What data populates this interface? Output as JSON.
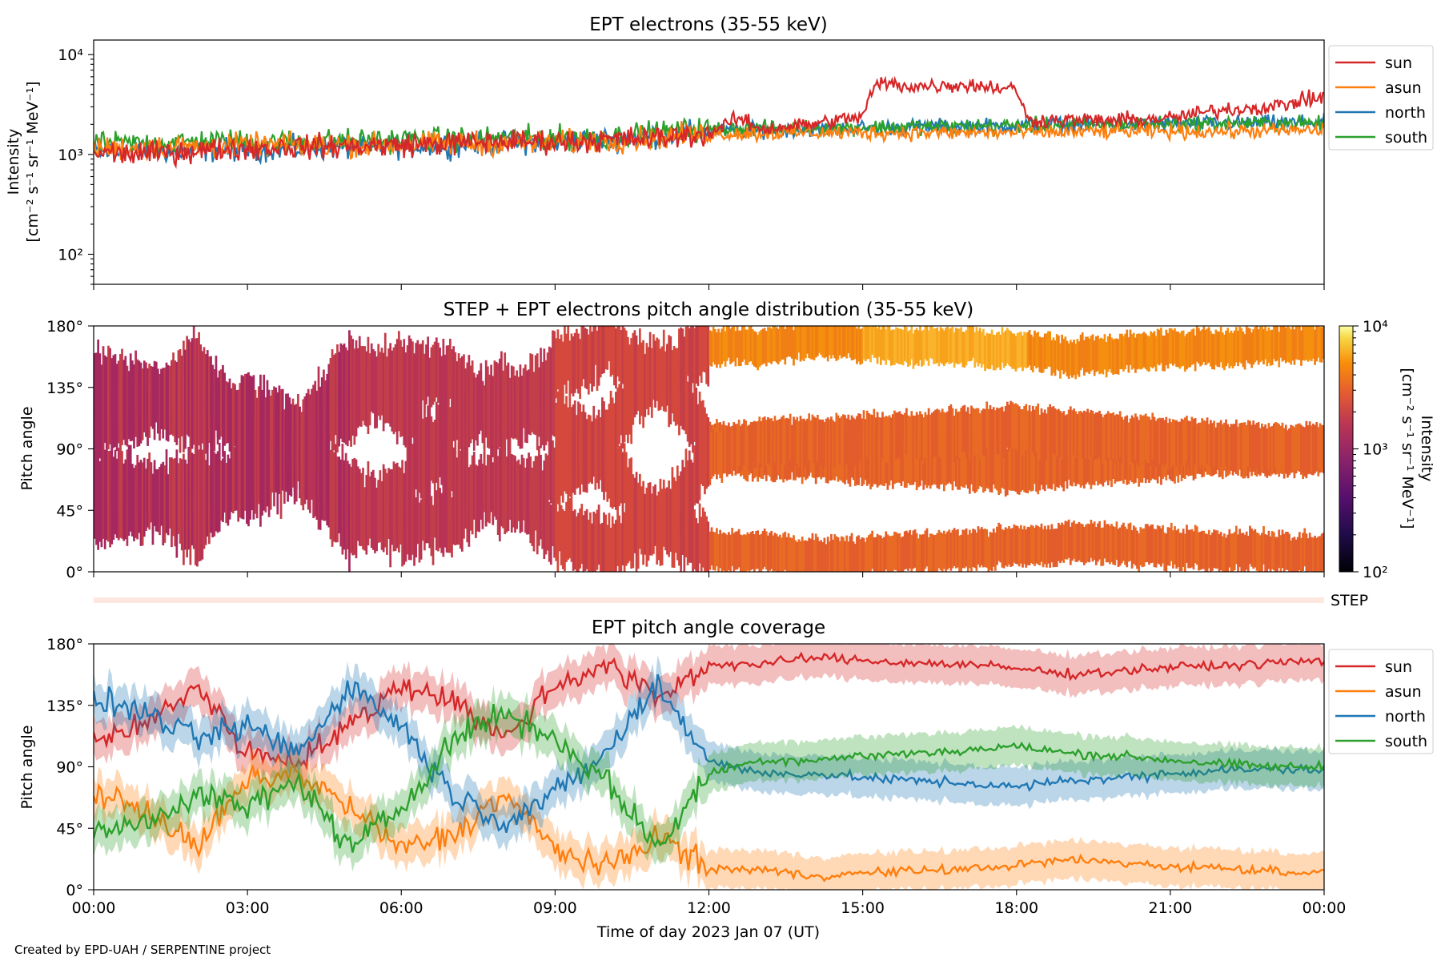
{
  "footer_credit": "Created by EPD-UAH / SERPENTINE project",
  "colors": {
    "sun": "#d62728",
    "asun": "#ff7f0e",
    "north": "#1f77b4",
    "south": "#2ca02c"
  },
  "chart_data": [
    {
      "type": "line",
      "title": "EPT electrons (35-55 keV)",
      "ylabel": "Intensity",
      "ylabel_units": "[cm⁻² s⁻¹ sr⁻¹ MeV⁻¹]",
      "yscale": "log",
      "ylim": [
        50,
        14000
      ],
      "yticks": [
        {
          "value": 100,
          "label": "10²"
        },
        {
          "value": 1000,
          "label": "10³"
        },
        {
          "value": 10000,
          "label": "10⁴"
        }
      ],
      "xlim_hours": [
        0,
        24
      ],
      "legend": {
        "placement": "outside-right",
        "entries": [
          "sun",
          "asun",
          "north",
          "south"
        ]
      },
      "series": [
        {
          "name": "sun",
          "color": "#d62728",
          "x": [
            0,
            1,
            2,
            3,
            4,
            5,
            6,
            7,
            8,
            9,
            10,
            11,
            12,
            12.6,
            13,
            14,
            15,
            15.3,
            16,
            17,
            18,
            18.2,
            19,
            20,
            21,
            22,
            23,
            24
          ],
          "y": [
            1050,
            1000,
            1100,
            1150,
            1200,
            1200,
            1250,
            1300,
            1350,
            1350,
            1400,
            1450,
            1600,
            2300,
            1800,
            2000,
            2400,
            5200,
            4800,
            5000,
            4500,
            2200,
            2200,
            2200,
            2300,
            2800,
            3000,
            3800
          ]
        },
        {
          "name": "asun",
          "color": "#ff7f0e",
          "x": [
            0,
            2,
            4,
            6,
            8,
            10,
            12,
            14,
            16,
            18,
            20,
            22,
            24
          ],
          "y": [
            1150,
            1200,
            1250,
            1250,
            1300,
            1350,
            1600,
            1650,
            1650,
            1650,
            1700,
            1700,
            1750
          ]
        },
        {
          "name": "north",
          "color": "#1f77b4",
          "x": [
            0,
            2,
            4,
            6,
            8,
            10,
            12,
            14,
            16,
            18,
            20,
            22,
            24
          ],
          "y": [
            1050,
            1100,
            1150,
            1200,
            1300,
            1400,
            1700,
            1800,
            1900,
            1950,
            2000,
            2050,
            2100
          ]
        },
        {
          "name": "south",
          "color": "#2ca02c",
          "x": [
            0,
            2,
            4,
            6,
            8,
            10,
            12,
            14,
            16,
            18,
            20,
            22,
            24
          ],
          "y": [
            1250,
            1350,
            1350,
            1400,
            1450,
            1500,
            1800,
            1850,
            1900,
            1950,
            2000,
            2050,
            2050
          ]
        }
      ]
    },
    {
      "type": "heatmap",
      "title": "STEP + EPT electrons pitch angle distribution (35-55 keV)",
      "ylabel": "Pitch angle",
      "ylim_deg": [
        0,
        180
      ],
      "yticks": [
        "0°",
        "45°",
        "90°",
        "135°",
        "180°"
      ],
      "xlim_hours": [
        0,
        24
      ],
      "colorbar": {
        "label": "Intensity",
        "units": "[cm⁻² s⁻¹ sr⁻¹ MeV⁻¹]",
        "scale": "log",
        "range": [
          100,
          10000
        ],
        "ticks": [
          {
            "value": 100,
            "label": "10²"
          },
          {
            "value": 1000,
            "label": "10³"
          },
          {
            "value": 10000,
            "label": "10⁴"
          }
        ],
        "colormap": "inferno"
      },
      "bands_deg": [
        {
          "name": "sun",
          "center_after_12h": 168,
          "halfwidth": 12
        },
        {
          "name": "north",
          "center_after_12h": 88,
          "halfwidth": 18
        },
        {
          "name": "south",
          "center_after_12h": 92,
          "halfwidth": 18
        },
        {
          "name": "asun",
          "center_after_12h": 14,
          "halfwidth": 14
        }
      ],
      "step_strip_label": "STEP"
    },
    {
      "type": "line",
      "title": "EPT pitch angle coverage",
      "ylabel": "Pitch angle",
      "ylim_deg": [
        0,
        180
      ],
      "yticks": [
        "0°",
        "45°",
        "90°",
        "135°",
        "180°"
      ],
      "xlabel": "Time of day 2023 Jan 07 (UT)",
      "xlim_hours": [
        0,
        24
      ],
      "xticks": [
        "00:00",
        "03:00",
        "06:00",
        "09:00",
        "12:00",
        "15:00",
        "18:00",
        "21:00",
        "00:00"
      ],
      "legend": {
        "placement": "outside-right",
        "entries": [
          "sun",
          "asun",
          "north",
          "south"
        ]
      },
      "band_halfwidth_deg": 14,
      "series": [
        {
          "name": "sun",
          "color": "#d62728",
          "x": [
            0,
            1,
            2,
            3,
            4,
            5,
            6,
            7,
            8,
            9,
            10,
            11,
            12,
            13,
            14,
            15,
            16,
            17,
            18,
            19,
            20,
            21,
            22,
            23,
            24
          ],
          "y": [
            110,
            120,
            150,
            100,
            95,
            120,
            150,
            140,
            110,
            150,
            165,
            140,
            165,
            165,
            170,
            168,
            166,
            165,
            162,
            158,
            160,
            163,
            164,
            166,
            168
          ]
        },
        {
          "name": "asun",
          "color": "#ff7f0e",
          "x": [
            0,
            1,
            2,
            3,
            4,
            5,
            6,
            7,
            8,
            9,
            10,
            11,
            12,
            13,
            14,
            15,
            16,
            17,
            18,
            19,
            20,
            21,
            22,
            23,
            24
          ],
          "y": [
            70,
            60,
            30,
            80,
            85,
            60,
            30,
            40,
            70,
            30,
            15,
            40,
            15,
            15,
            10,
            12,
            14,
            15,
            18,
            22,
            20,
            17,
            16,
            14,
            12
          ]
        },
        {
          "name": "north",
          "color": "#1f77b4",
          "x": [
            0,
            1,
            2,
            3,
            4,
            5,
            6,
            7,
            8,
            9,
            10,
            11,
            12,
            13,
            14,
            15,
            16,
            17,
            18,
            19,
            20,
            21,
            22,
            23,
            24
          ],
          "y": [
            140,
            130,
            110,
            120,
            100,
            150,
            120,
            70,
            50,
            70,
            100,
            150,
            95,
            85,
            85,
            82,
            80,
            78,
            75,
            80,
            82,
            85,
            88,
            88,
            88
          ]
        },
        {
          "name": "south",
          "color": "#2ca02c",
          "x": [
            0,
            1,
            2,
            3,
            4,
            5,
            6,
            7,
            8,
            9,
            10,
            11,
            12,
            13,
            14,
            15,
            16,
            17,
            18,
            19,
            20,
            21,
            22,
            23,
            24
          ],
          "y": [
            40,
            50,
            70,
            60,
            80,
            30,
            60,
            110,
            130,
            110,
            80,
            30,
            85,
            95,
            95,
            98,
            100,
            102,
            105,
            100,
            98,
            95,
            92,
            90,
            90
          ]
        }
      ]
    }
  ]
}
